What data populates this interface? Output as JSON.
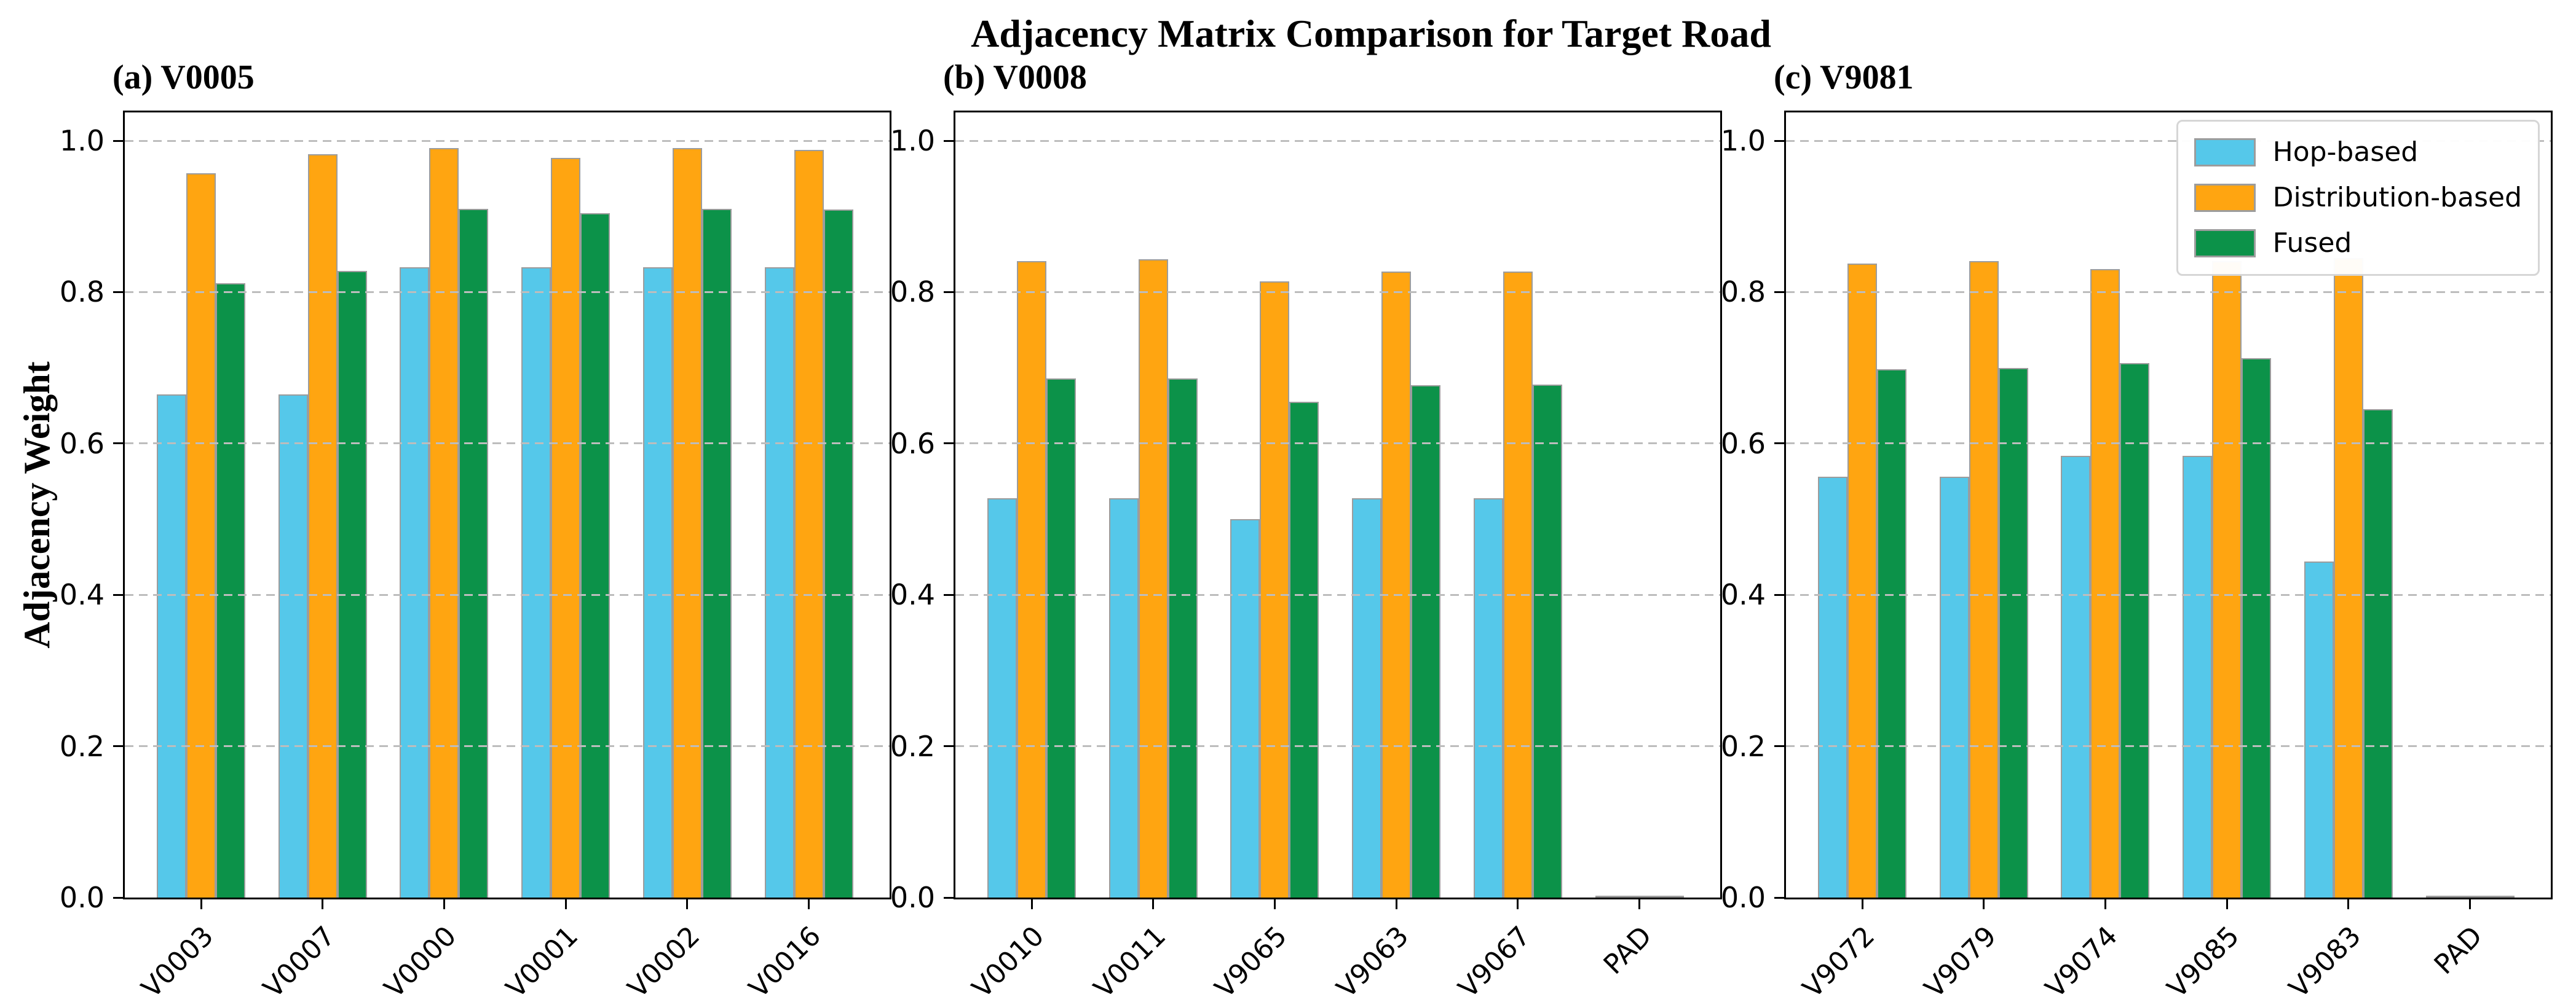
{
  "title": "Adjacency Matrix Comparison for Target Road",
  "ylabel": "Adjacency Weight",
  "legend": {
    "position": "upper-right of panel (c)",
    "entries": [
      {
        "label": "Hop-based",
        "color": "#55C8EA"
      },
      {
        "label": "Distribution-based",
        "color": "#FFA511"
      },
      {
        "label": "Fused",
        "color": "#0C9249"
      }
    ]
  },
  "colors": {
    "bar_edge": "#9C9C9C",
    "grid": "#BDBDBD",
    "spine": "#000000",
    "background": "#FFFFFF"
  },
  "chart_data": [
    {
      "type": "bar",
      "panel_label": "(a) V0005",
      "categories": [
        "V0003",
        "V0007",
        "V0000",
        "V0001",
        "V0002",
        "V0016"
      ],
      "series": [
        {
          "name": "Hop-based",
          "values": [
            0.665,
            0.665,
            0.833,
            0.833,
            0.833,
            0.833
          ]
        },
        {
          "name": "Distribution-based",
          "values": [
            0.957,
            0.982,
            0.99,
            0.977,
            0.99,
            0.988
          ]
        },
        {
          "name": "Fused",
          "values": [
            0.812,
            0.828,
            0.91,
            0.904,
            0.91,
            0.909
          ]
        }
      ],
      "ylim": [
        0,
        1.04
      ],
      "yticks": [
        0.0,
        0.2,
        0.4,
        0.6,
        0.8,
        1.0
      ],
      "grid": "dashed-horizontal"
    },
    {
      "type": "bar",
      "panel_label": "(b) V0008",
      "categories": [
        "V0010",
        "V0011",
        "V9065",
        "V9063",
        "V9067",
        "PAD"
      ],
      "series": [
        {
          "name": "Hop-based",
          "values": [
            0.528,
            0.528,
            0.5,
            0.528,
            0.528,
            0.0
          ]
        },
        {
          "name": "Distribution-based",
          "values": [
            0.841,
            0.843,
            0.814,
            0.827,
            0.827,
            0.0
          ]
        },
        {
          "name": "Fused",
          "values": [
            0.686,
            0.686,
            0.655,
            0.677,
            0.678,
            0.0
          ]
        }
      ],
      "ylim": [
        0,
        1.04
      ],
      "yticks": [
        0.0,
        0.2,
        0.4,
        0.6,
        0.8,
        1.0
      ],
      "grid": "dashed-horizontal"
    },
    {
      "type": "bar",
      "panel_label": "(c) V9081",
      "categories": [
        "V9072",
        "V9079",
        "V9074",
        "V9085",
        "V9083",
        "PAD"
      ],
      "series": [
        {
          "name": "Hop-based",
          "values": [
            0.556,
            0.556,
            0.584,
            0.584,
            0.444,
            0.0
          ]
        },
        {
          "name": "Distribution-based",
          "values": [
            0.838,
            0.841,
            0.83,
            0.841,
            0.845,
            0.0
          ]
        },
        {
          "name": "Fused",
          "values": [
            0.698,
            0.7,
            0.706,
            0.713,
            0.645,
            0.0
          ]
        }
      ],
      "ylim": [
        0,
        1.04
      ],
      "yticks": [
        0.0,
        0.2,
        0.4,
        0.6,
        0.8,
        1.0
      ],
      "grid": "dashed-horizontal"
    }
  ]
}
